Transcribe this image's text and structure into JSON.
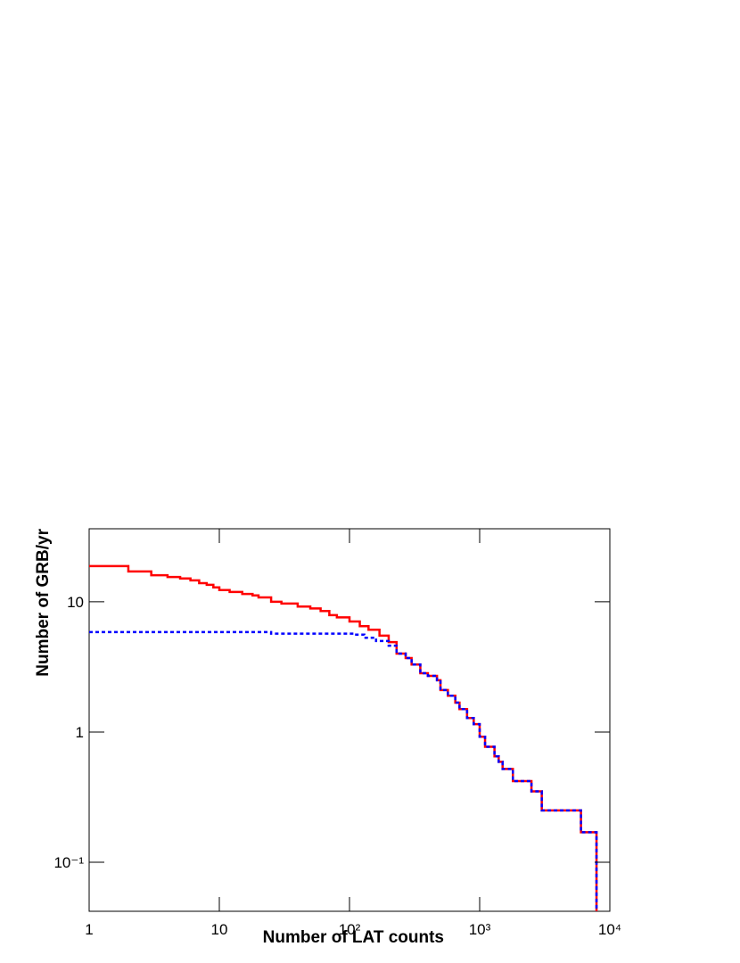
{
  "chart_data": {
    "type": "step",
    "xlabel": "Number of LAT counts",
    "ylabel": "Number of GRB/yr",
    "xscale": "log",
    "yscale": "log",
    "xlim": [
      1,
      10000
    ],
    "ylim": [
      0.042,
      36.4
    ],
    "xticks": [
      1,
      10,
      {
        "value": 100,
        "label": "10²"
      },
      {
        "value": 1000,
        "label": "10³"
      },
      {
        "value": 10000,
        "label": "10⁴"
      }
    ],
    "yticks": [
      {
        "value": 0.1,
        "label": "10⁻¹"
      },
      1,
      10
    ],
    "series": [
      {
        "color": "#ff0000",
        "dash": false,
        "x": [
          1,
          2,
          3,
          4,
          5,
          6,
          7,
          8,
          9,
          10,
          12,
          15,
          18,
          20,
          25,
          30,
          40,
          50,
          60,
          70,
          80,
          100,
          120,
          140,
          170,
          200,
          230,
          270,
          300,
          350,
          400,
          470,
          500,
          570,
          650,
          700,
          800,
          900,
          1000,
          1100,
          1300,
          1400,
          1500,
          1800,
          2500,
          3000,
          6000,
          7900
        ],
        "values": [
          18.8,
          17.1,
          16.0,
          15.5,
          15.1,
          14.6,
          13.9,
          13.5,
          12.9,
          12.3,
          11.9,
          11.5,
          11.2,
          10.8,
          10.0,
          9.7,
          9.2,
          8.9,
          8.5,
          7.9,
          7.6,
          7.06,
          6.5,
          6.1,
          5.5,
          4.9,
          4.0,
          3.7,
          3.3,
          2.83,
          2.7,
          2.5,
          2.1,
          1.9,
          1.68,
          1.5,
          1.28,
          1.15,
          0.92,
          0.77,
          0.65,
          0.59,
          0.52,
          0.42,
          0.35,
          0.25,
          0.17,
          0.04
        ]
      },
      {
        "color": "#0000ff",
        "dash": true,
        "x": [
          1,
          25,
          110,
          130,
          160,
          200,
          230,
          270,
          300,
          350,
          400,
          470,
          500,
          570,
          650,
          700,
          800,
          900,
          1000,
          1100,
          1300,
          1400,
          1500,
          1800,
          2500,
          3000,
          6000,
          7900
        ],
        "values": [
          5.85,
          5.7,
          5.6,
          5.3,
          5.0,
          4.6,
          4.0,
          3.7,
          3.3,
          2.83,
          2.7,
          2.5,
          2.1,
          1.9,
          1.68,
          1.5,
          1.28,
          1.15,
          0.92,
          0.77,
          0.65,
          0.59,
          0.52,
          0.42,
          0.35,
          0.25,
          0.17,
          0.04
        ]
      }
    ]
  }
}
